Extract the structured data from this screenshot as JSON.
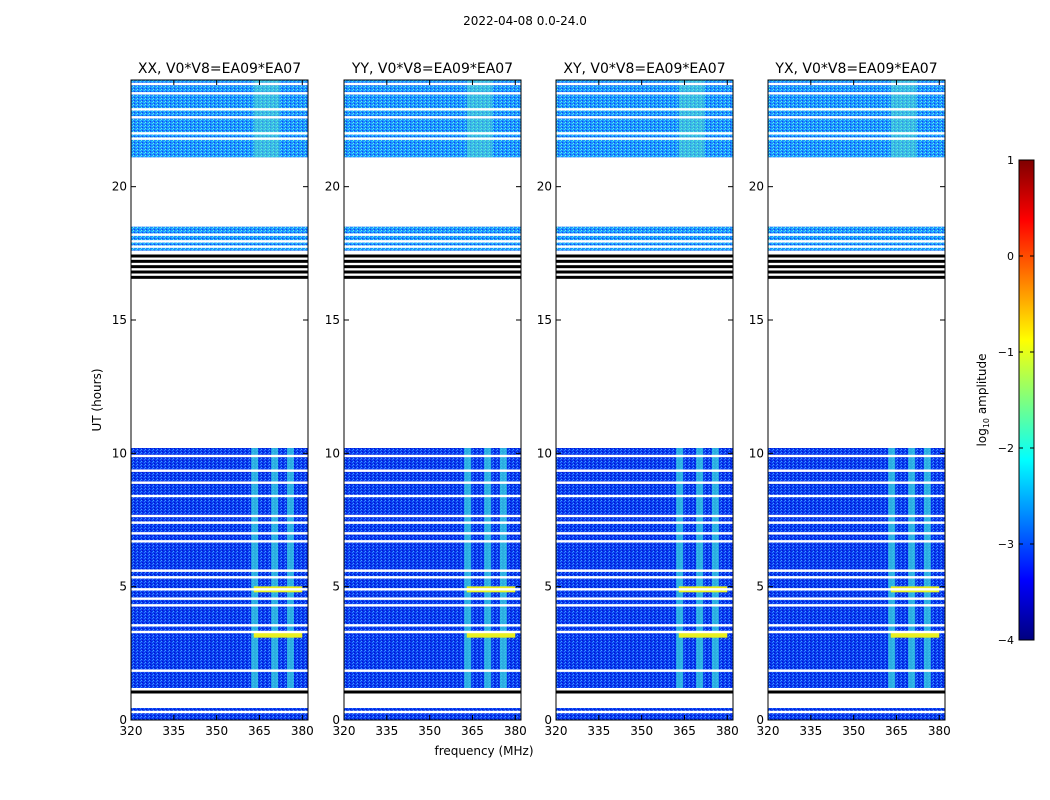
{
  "figure": {
    "suptitle": "2022-04-08 0.0-24.0",
    "xlabel": "frequency (MHz)",
    "ylabel": "UT (hours)"
  },
  "colorbar": {
    "label_main": "log",
    "label_sub": "10",
    "label_rest": " amplitude",
    "ticks": [
      "1",
      "0",
      "−1",
      "−2",
      "−3",
      "−4"
    ],
    "tick_values": [
      1,
      0,
      -1,
      -2,
      -3,
      -4
    ],
    "range": [
      -4,
      1
    ],
    "colormap": "jet",
    "stops": [
      "#00007f",
      "#0000ff",
      "#007fff",
      "#00ffff",
      "#7fff7f",
      "#ffff00",
      "#ff7f00",
      "#ff0000",
      "#7f0000"
    ]
  },
  "chart_data": {
    "type": "heatmap",
    "x_range": [
      320,
      382
    ],
    "y_range": [
      0,
      24
    ],
    "x_ticks": [
      320,
      335,
      350,
      365,
      380
    ],
    "x_tick_labels": [
      "320",
      "335",
      "350",
      "365",
      "380"
    ],
    "y_ticks": [
      0,
      5,
      10,
      15,
      20
    ],
    "y_tick_labels": [
      "0",
      "5",
      "10",
      "15",
      "20"
    ],
    "panels": [
      {
        "title": "XX, V0*V8=EA09*EA07"
      },
      {
        "title": "YY, V0*V8=EA09*EA07"
      },
      {
        "title": "XY, V0*V8=EA09*EA07"
      },
      {
        "title": "YX, V0*V8=EA09*EA07"
      }
    ],
    "data_blocks_ut": [
      [
        0.0,
        0.45
      ],
      [
        1.2,
        10.2
      ],
      [
        17.6,
        18.5
      ],
      [
        21.1,
        24.0
      ]
    ],
    "white_gap_lines_ut": [
      0.3,
      1.1,
      1.85,
      3.3,
      3.55,
      4.3,
      4.55,
      4.9,
      5.35,
      5.6,
      6.7,
      7.0,
      7.4,
      7.65,
      8.4,
      8.9,
      9.35,
      9.9,
      17.75,
      17.95,
      18.2,
      21.8,
      22.0,
      22.6,
      22.9,
      23.5,
      23.85
    ],
    "black_lines_ut": [
      1.05,
      16.6,
      16.8,
      17.0,
      17.2,
      17.4
    ],
    "rfi_channels_mhz": [
      363.5,
      370.5,
      376.0
    ],
    "rfi_bright_ut": [
      3.2,
      4.9
    ]
  }
}
